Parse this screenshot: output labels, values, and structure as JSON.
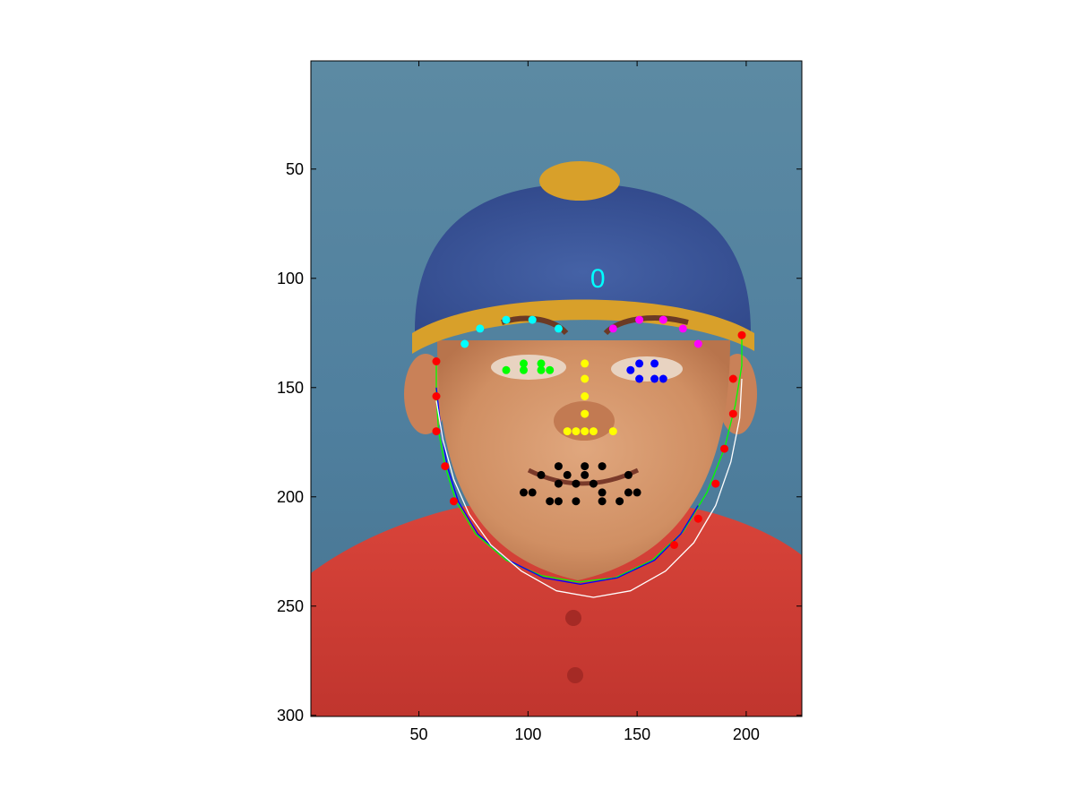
{
  "chart_data": {
    "type": "scatter",
    "title": "",
    "xlabel": "",
    "ylabel": "",
    "xlim": [
      0.5,
      225.5
    ],
    "ylim": [
      0.5,
      300.5
    ],
    "y_inverted": true,
    "background": "painted portrait image (face wearing a blue knit cap with gold trim and a red shirt)",
    "x_ticks": [
      50,
      100,
      150,
      200
    ],
    "y_ticks": [
      50,
      100,
      150,
      200,
      250,
      300
    ],
    "x_tick_labels": [
      "50",
      "100",
      "150",
      "200"
    ],
    "y_tick_labels": [
      "50",
      "100",
      "150",
      "200",
      "250",
      "300"
    ],
    "grid": false,
    "legend": "none",
    "series": [
      {
        "color": "#00ffff",
        "points": [
          [
            71,
            130
          ],
          [
            78,
            123
          ],
          [
            90,
            119
          ],
          [
            102,
            119
          ],
          [
            114,
            123
          ]
        ]
      },
      {
        "color": "#ff00ff",
        "points": [
          [
            139,
            123
          ],
          [
            151,
            119
          ],
          [
            162,
            119
          ],
          [
            171,
            123
          ],
          [
            178,
            130
          ]
        ]
      },
      {
        "color": "#00ff00",
        "points": [
          [
            90,
            142
          ],
          [
            98,
            139
          ],
          [
            98,
            142
          ],
          [
            106,
            139
          ],
          [
            106,
            142
          ],
          [
            110,
            142
          ]
        ]
      },
      {
        "color": "#0000ff",
        "points": [
          [
            147,
            142
          ],
          [
            151,
            139
          ],
          [
            151,
            146
          ],
          [
            158,
            139
          ],
          [
            158,
            146
          ],
          [
            162,
            146
          ]
        ]
      },
      {
        "color": "#ffff00",
        "points": [
          [
            126,
            139
          ],
          [
            126,
            146
          ],
          [
            126,
            154
          ],
          [
            126,
            162
          ],
          [
            118,
            170
          ],
          [
            122,
            170
          ],
          [
            126,
            170
          ],
          [
            130,
            170
          ],
          [
            139,
            170
          ]
        ]
      },
      {
        "color": "#000000",
        "points": [
          [
            114,
            186
          ],
          [
            126,
            186
          ],
          [
            134,
            186
          ],
          [
            106,
            190
          ],
          [
            118,
            190
          ],
          [
            126,
            190
          ],
          [
            146,
            190
          ],
          [
            114,
            194
          ],
          [
            122,
            194
          ],
          [
            130,
            194
          ],
          [
            98,
            198
          ],
          [
            102,
            198
          ],
          [
            134,
            198
          ],
          [
            146,
            198
          ],
          [
            150,
            198
          ],
          [
            110,
            202
          ],
          [
            114,
            202
          ],
          [
            122,
            202
          ],
          [
            134,
            202
          ],
          [
            142,
            202
          ]
        ]
      },
      {
        "color": "#ff0000",
        "points": [
          [
            58,
            138
          ],
          [
            58,
            154
          ],
          [
            58,
            170
          ],
          [
            62,
            186
          ],
          [
            66,
            202
          ],
          [
            198,
            126
          ],
          [
            194,
            146
          ],
          [
            194,
            162
          ],
          [
            190,
            178
          ],
          [
            186,
            194
          ],
          [
            178,
            210
          ],
          [
            167,
            222
          ]
        ]
      }
    ],
    "curves": [
      {
        "color": "#00ff00",
        "points": [
          [
            58,
            138
          ],
          [
            58,
            154
          ],
          [
            59,
            170
          ],
          [
            62,
            186
          ],
          [
            67,
            202
          ],
          [
            76,
            217
          ],
          [
            90,
            229
          ],
          [
            106,
            236
          ],
          [
            123,
            239
          ],
          [
            140,
            237
          ],
          [
            157,
            229
          ],
          [
            171,
            216
          ],
          [
            182,
            198
          ],
          [
            190,
            178
          ],
          [
            195,
            158
          ],
          [
            198,
            140
          ],
          [
            198,
            126
          ]
        ]
      },
      {
        "color": "#0000ff",
        "points": [
          [
            58,
            150
          ],
          [
            60,
            168
          ],
          [
            63,
            186
          ],
          [
            68,
            202
          ],
          [
            77,
            217
          ],
          [
            91,
            229
          ],
          [
            107,
            237
          ],
          [
            124,
            240
          ],
          [
            141,
            237
          ],
          [
            158,
            229
          ],
          [
            170,
            217
          ],
          [
            178,
            204
          ]
        ]
      },
      {
        "color": "#ffffff",
        "points": [
          [
            58,
            156
          ],
          [
            61,
            174
          ],
          [
            66,
            192
          ],
          [
            73,
            208
          ],
          [
            83,
            222
          ],
          [
            97,
            234
          ],
          [
            113,
            243
          ],
          [
            130,
            246
          ],
          [
            147,
            243
          ],
          [
            163,
            234
          ],
          [
            176,
            221
          ],
          [
            186,
            204
          ],
          [
            193,
            184
          ],
          [
            197,
            164
          ],
          [
            198,
            146
          ]
        ]
      }
    ],
    "annotations": [
      {
        "text": "0",
        "x": 132,
        "y": 100,
        "color": "#00ffff"
      }
    ]
  }
}
